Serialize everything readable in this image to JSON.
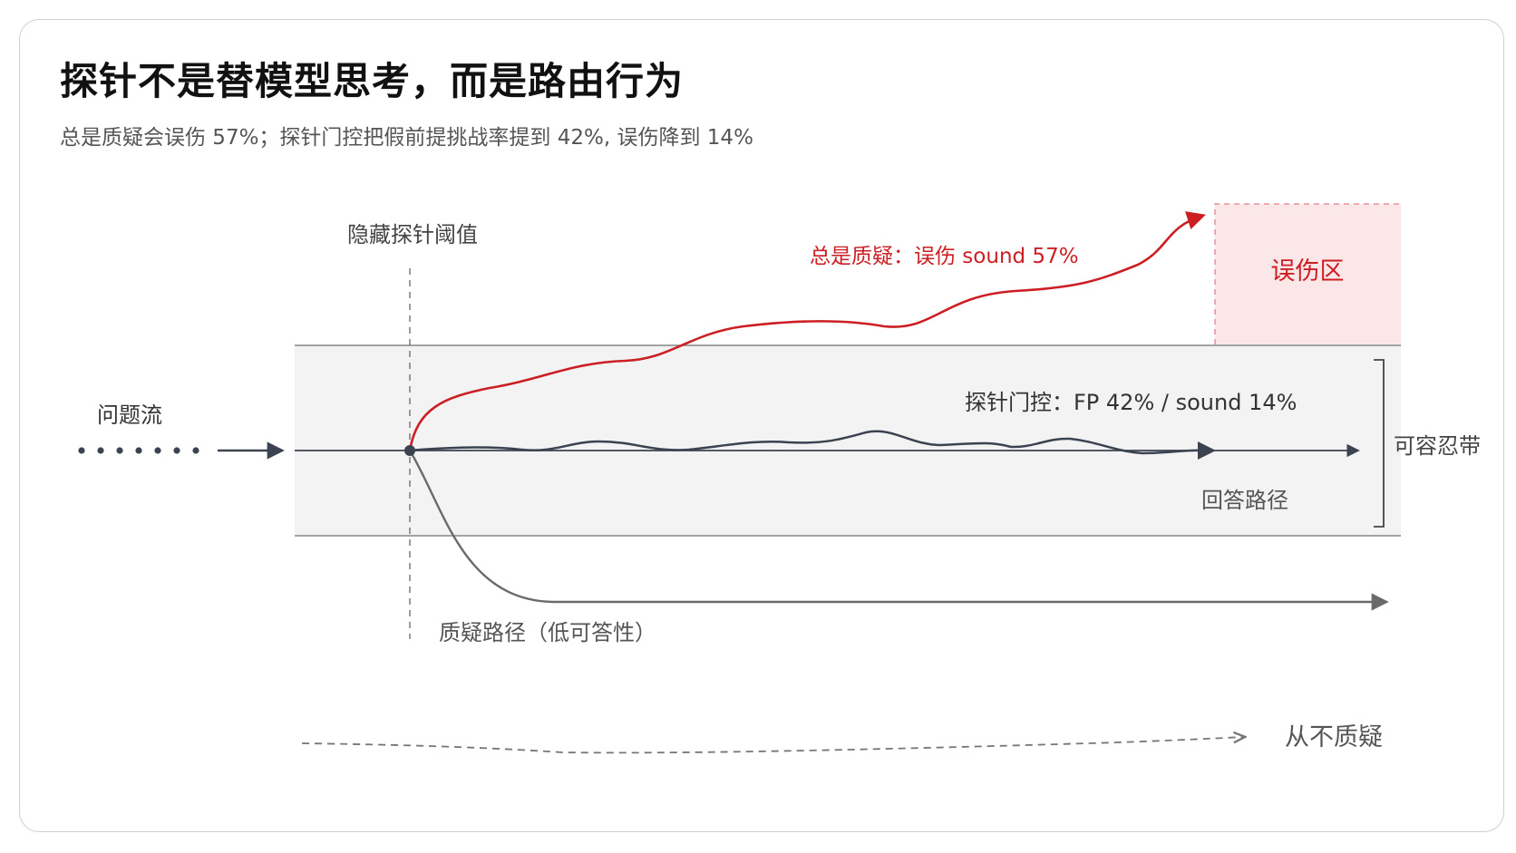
{
  "header": {
    "title": "探针不是替模型思考，而是路由行为",
    "subtitle": "总是质疑会误伤 57%；探针门控把假前提挑战率提到 42%, 误伤降到 14%"
  },
  "diagram": {
    "input_label": "问题流",
    "threshold_label": "隐藏探针阈值",
    "always_challenge_label": "总是质疑：误伤 sound 57%",
    "harm_zone_label": "误伤区",
    "gated_label": "探针门控：FP 42% / sound 14%",
    "tolerance_label": "可容忍带",
    "answer_path_label": "回答路径",
    "challenge_path_label": "质疑路径（低可答性）",
    "never_challenge_label": "从不质疑"
  },
  "colors": {
    "accent_red": "#cc1f24",
    "path_dark": "#3b4250",
    "path_gray": "#6a6a6a",
    "band_fill": "#f3f3f3",
    "harm_zone_fill": "#fbe6e8"
  }
}
